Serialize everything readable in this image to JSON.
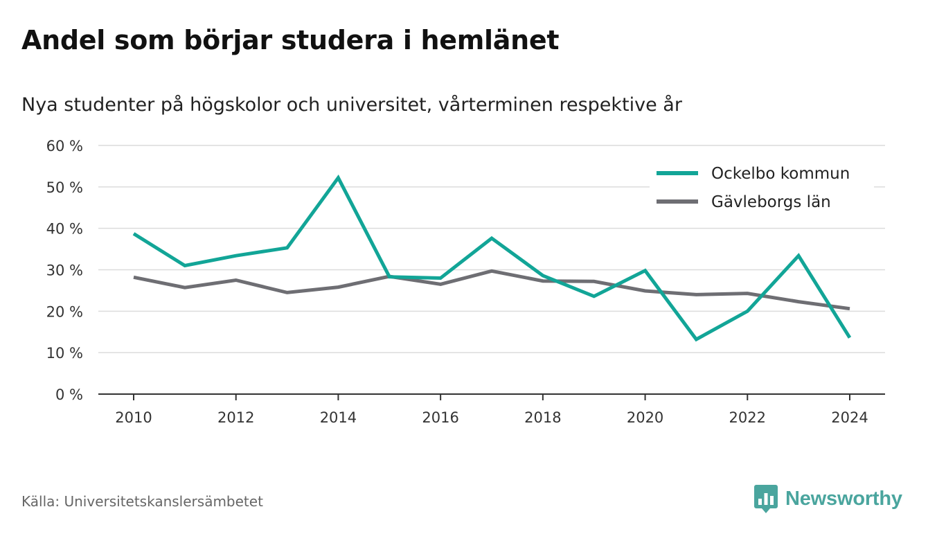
{
  "header": {
    "title": "Andel som börjar studera i hemlänet",
    "subtitle": "Nya studenter på högskolor och universitet, vårterminen respektive år"
  },
  "footer": {
    "source": "Källa: Universitetskanslersämbetet",
    "brand": "Newsworthy"
  },
  "colors": {
    "ockelbo": "#12a597",
    "gavleborg": "#6e6e73",
    "grid": "#dcdcdc",
    "axis": "#333333",
    "brand": "#4aa59e"
  },
  "icons": {
    "brand_logo": "bar-chart-speech-bubble-icon"
  },
  "chart_data": {
    "type": "line",
    "x": [
      2010,
      2011,
      2012,
      2013,
      2014,
      2015,
      2016,
      2017,
      2018,
      2019,
      2020,
      2021,
      2022,
      2023,
      2024
    ],
    "x_ticks": [
      "2010",
      "2012",
      "2014",
      "2016",
      "2018",
      "2020",
      "2022",
      "2024"
    ],
    "y_ticks": [
      "0 %",
      "10 %",
      "20 %",
      "30 %",
      "40 %",
      "50 %",
      "60 %"
    ],
    "ylim": [
      0,
      60
    ],
    "grid": true,
    "legend_position": "top-right",
    "series": [
      {
        "name": "Ockelbo kommun",
        "values": [
          38.7,
          31.0,
          33.4,
          35.3,
          52.2,
          28.3,
          28.0,
          37.6,
          28.6,
          23.6,
          29.8,
          13.2,
          20.0,
          33.4,
          13.6
        ]
      },
      {
        "name": "Gävleborgs län",
        "values": [
          28.2,
          25.7,
          27.5,
          24.5,
          25.8,
          28.4,
          26.5,
          29.7,
          27.3,
          27.2,
          24.9,
          24.0,
          24.3,
          22.3,
          20.6
        ]
      }
    ]
  }
}
